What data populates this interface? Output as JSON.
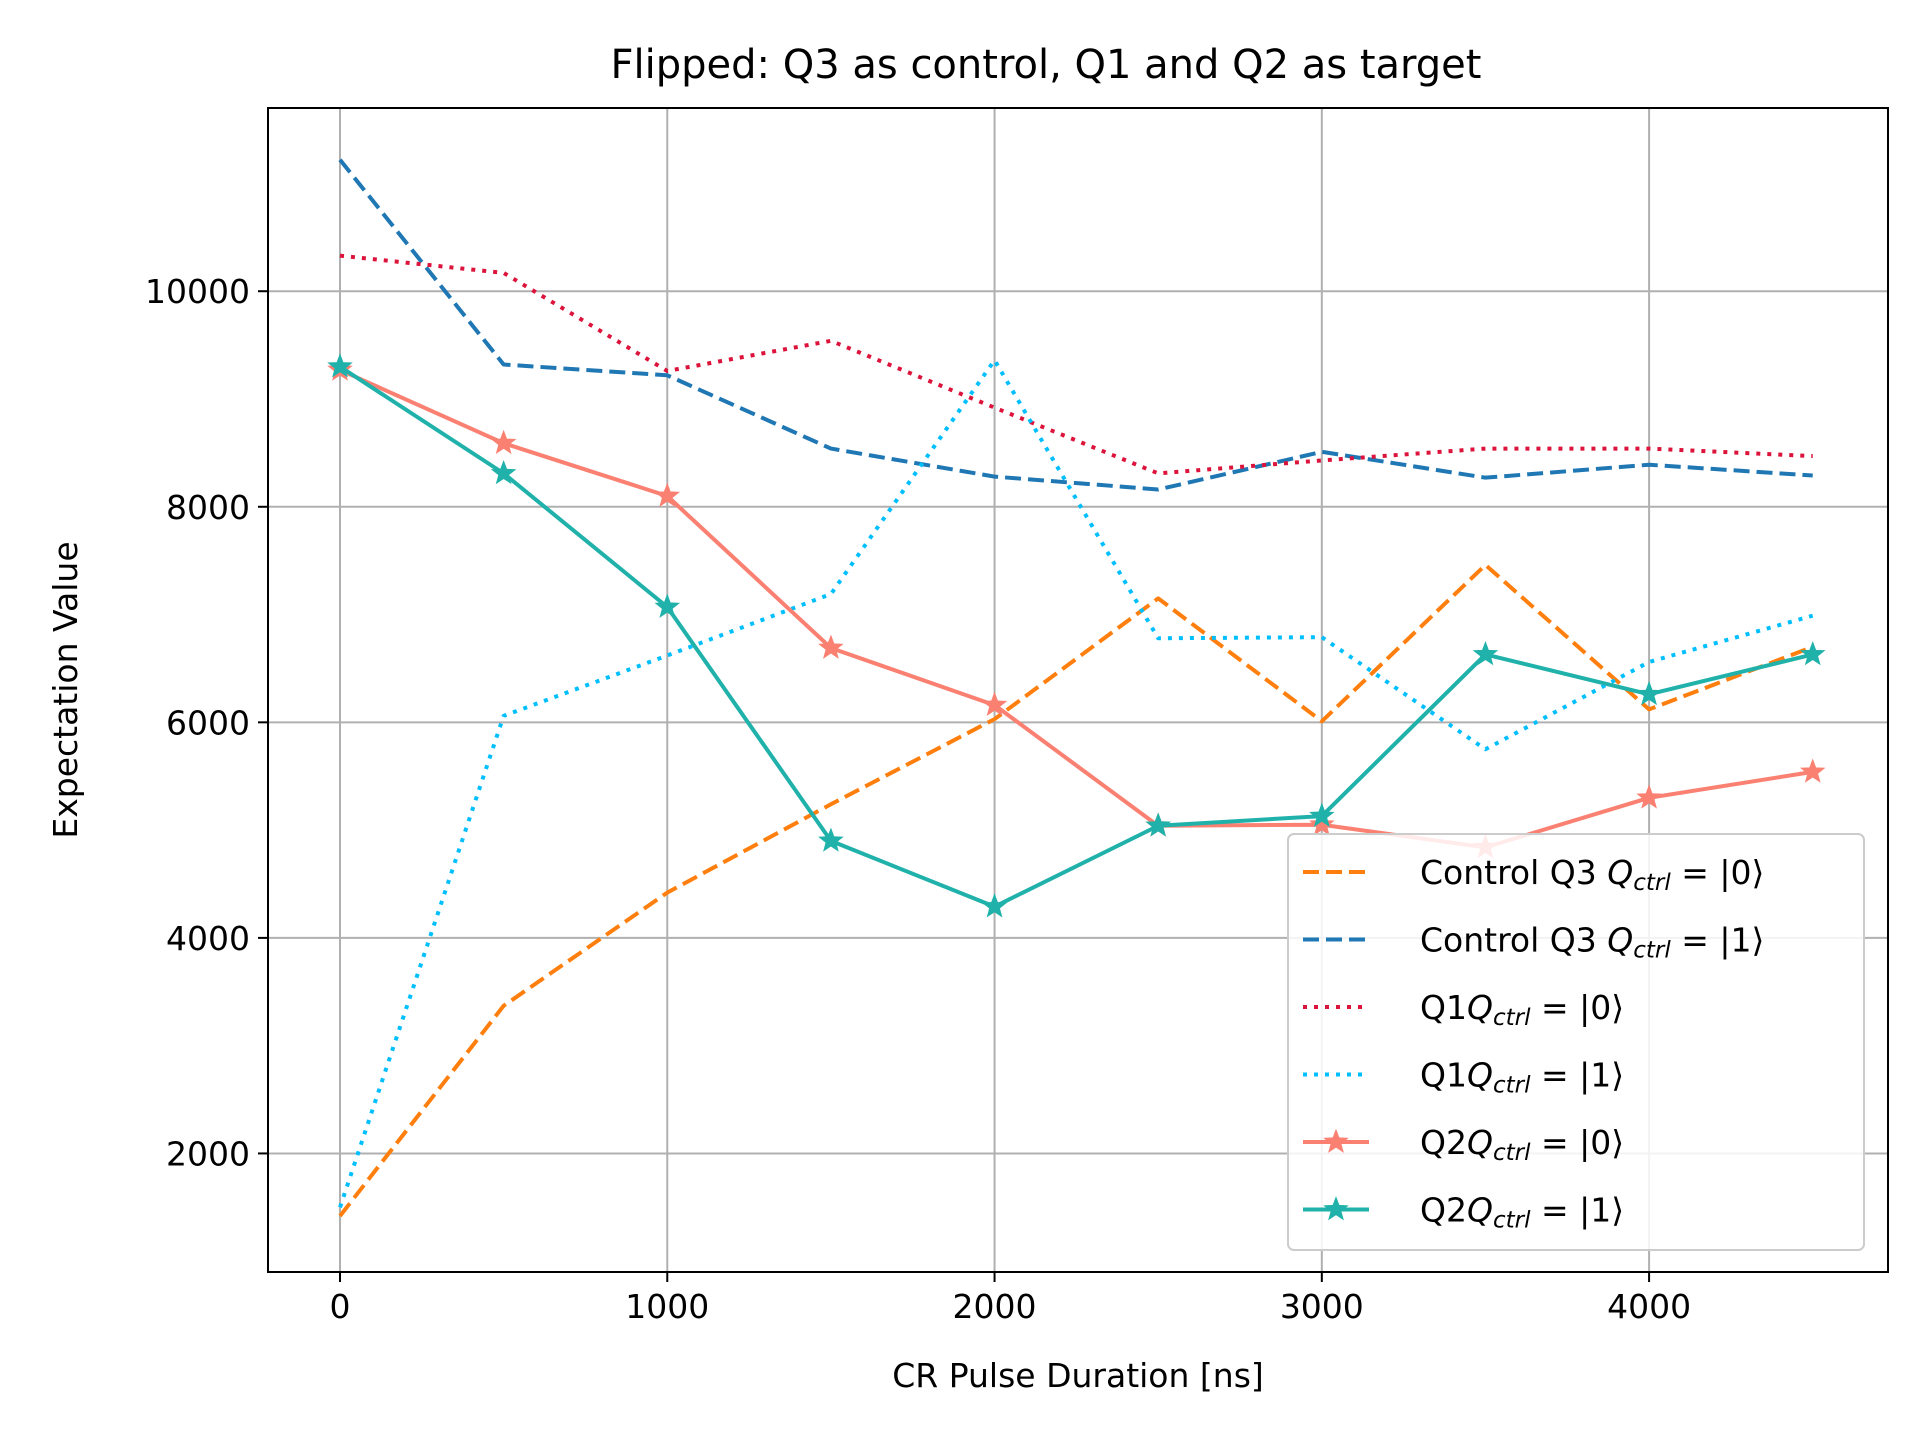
{
  "chart_data": {
    "type": "line",
    "title": "Flipped: Q3 as control, Q1 and Q2 as target",
    "xlabel": "CR Pulse Duration [ns]",
    "ylabel": "Expectation Value",
    "xlim": [
      -220,
      4730
    ],
    "ylim": [
      900,
      11700
    ],
    "x_ticks": [
      0,
      1000,
      2000,
      3000,
      4000
    ],
    "y_ticks": [
      2000,
      4000,
      6000,
      8000,
      10000
    ],
    "x_tick_labels": [
      "0",
      "1000",
      "2000",
      "3000",
      "4000"
    ],
    "y_tick_labels": [
      "2000",
      "4000",
      "6000",
      "8000",
      "10000"
    ],
    "grid": true,
    "legend_position": "lower-right",
    "x": [
      0,
      500,
      1000,
      1500,
      2000,
      2500,
      3000,
      3500,
      4000,
      4500
    ],
    "series": [
      {
        "name": "Control Q3 Q_ctrl = |0⟩",
        "legend_prefix": "Control Q3 ",
        "legend_state": "|0⟩",
        "color": "#ff7f0e",
        "line_style": "dashed",
        "marker": "none",
        "values": [
          1420,
          3370,
          4420,
          5240,
          6030,
          7150,
          6010,
          7460,
          6120,
          6700
        ]
      },
      {
        "name": "Control Q3 Q_ctrl = |1⟩",
        "legend_prefix": "Control Q3 ",
        "legend_state": "|1⟩",
        "color": "#1f77b4",
        "line_style": "dashed",
        "marker": "none",
        "values": [
          11220,
          9320,
          9220,
          8540,
          8280,
          8160,
          8510,
          8270,
          8390,
          8290
        ]
      },
      {
        "name": "Q1 Q_ctrl = |0⟩",
        "legend_prefix": "Q1",
        "legend_state": "|0⟩",
        "color": "#dc143c",
        "line_style": "dotted",
        "marker": "none",
        "values": [
          10330,
          10170,
          9260,
          9540,
          8920,
          8310,
          8430,
          8540,
          8540,
          8470
        ]
      },
      {
        "name": "Q1 Q_ctrl = |1⟩",
        "legend_prefix": "Q1",
        "legend_state": "|1⟩",
        "color": "#00bfff",
        "line_style": "dotted",
        "marker": "none",
        "values": [
          1500,
          6060,
          6620,
          7190,
          9360,
          6780,
          6790,
          5750,
          6560,
          6990
        ]
      },
      {
        "name": "Q2 Q_ctrl = |0⟩",
        "legend_prefix": "Q2",
        "legend_state": "|0⟩",
        "color": "#fa8072",
        "line_style": "solid",
        "marker": "star",
        "values": [
          9270,
          8590,
          8100,
          6690,
          6160,
          5040,
          5050,
          4840,
          5300,
          5540
        ]
      },
      {
        "name": "Q2 Q_ctrl = |1⟩",
        "legend_prefix": "Q2",
        "legend_state": "|1⟩",
        "color": "#20b2aa",
        "line_style": "solid",
        "marker": "star",
        "values": [
          9300,
          8310,
          7070,
          4900,
          4290,
          5040,
          5130,
          6630,
          6260,
          6630
        ]
      }
    ]
  }
}
